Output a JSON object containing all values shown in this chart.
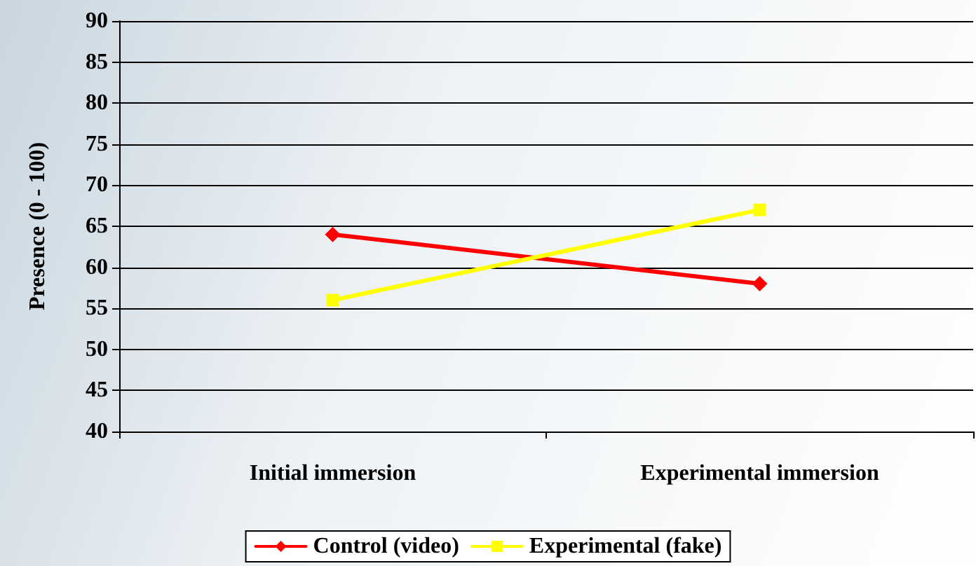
{
  "chart_data": {
    "type": "line",
    "ylabel": "Presence (0 - 100)",
    "categories": [
      "Initial immersion",
      "Experimental immersion"
    ],
    "series": [
      {
        "name": "Control (video)",
        "color": "#ff0000",
        "values": [
          64,
          58
        ],
        "marker": "diamond"
      },
      {
        "name": "Experimental (fake)",
        "color": "#ffff00",
        "values": [
          56,
          67
        ],
        "marker": "square"
      }
    ],
    "ylim": [
      40,
      90
    ],
    "yticks": [
      40,
      45,
      50,
      55,
      60,
      65,
      70,
      75,
      80,
      85,
      90
    ],
    "grid": "y",
    "legend": "bottom"
  }
}
